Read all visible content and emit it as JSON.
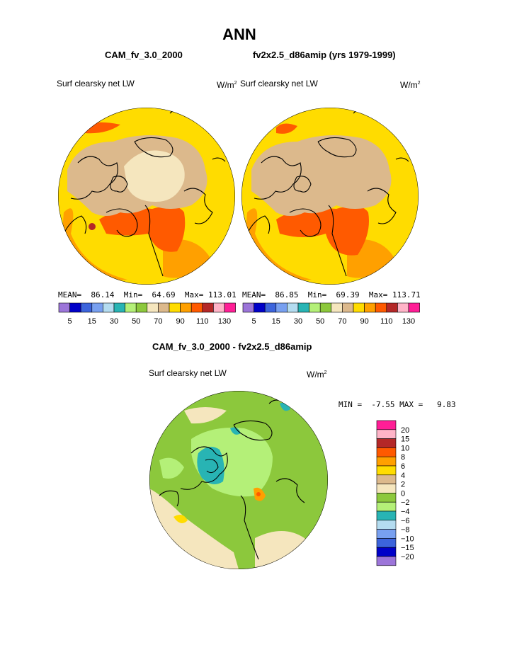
{
  "figure_title": "ANN",
  "chart_data": [
    {
      "type": "heatmap",
      "projection": "polar stereographic (north pole)",
      "case_title": "CAM_fv_3.0_2000",
      "variable_label": "Surf clearsky net LW",
      "units": "W/m",
      "units_exp": "2",
      "stats": {
        "mean_label": "MEAN=",
        "mean": "86.14",
        "min_label": "Min=",
        "min": "64.69",
        "max_label": "Max=",
        "max": "113.01"
      },
      "colorbar": {
        "levels": [
          "5",
          "15",
          "30",
          "50",
          "70",
          "90",
          "110",
          "130"
        ],
        "colors": [
          "#9c75d9",
          "#0000c8",
          "#3c64dc",
          "#78a0f0",
          "#b4dcf0",
          "#28b4b4",
          "#b4f078",
          "#8cc83c",
          "#f5e6be",
          "#dcb98c",
          "#ffdc00",
          "#ffa000",
          "#ff5a00",
          "#b42828",
          "#ffb4c8",
          "#ff1e96"
        ]
      },
      "regions_legend": {
        "arctic_center": "#f5e6be",
        "high_latitude_land": "#dcb98c",
        "mid_latitudes": "#ffdc00",
        "warm_bands": "#ffa000",
        "north_atlantic": "#ff5a00"
      }
    },
    {
      "type": "heatmap",
      "projection": "polar stereographic (north pole)",
      "case_title": "fv2x2.5_d86amip (yrs 1979-1999)",
      "variable_label": "Surf clearsky net LW",
      "units": "W/m",
      "units_exp": "2",
      "stats": {
        "mean_label": "MEAN=",
        "mean": "86.85",
        "min_label": "Min=",
        "min": "69.39",
        "max_label": "Max=",
        "max": "113.71"
      },
      "colorbar": {
        "levels": [
          "5",
          "15",
          "30",
          "50",
          "70",
          "90",
          "110",
          "130"
        ],
        "colors": [
          "#9c75d9",
          "#0000c8",
          "#3c64dc",
          "#78a0f0",
          "#b4dcf0",
          "#28b4b4",
          "#b4f078",
          "#8cc83c",
          "#f5e6be",
          "#dcb98c",
          "#ffdc00",
          "#ffa000",
          "#ff5a00",
          "#b42828",
          "#ffb4c8",
          "#ff1e96"
        ]
      }
    },
    {
      "type": "heatmap",
      "projection": "polar stereographic (north pole)",
      "case_title": "CAM_fv_3.0_2000 - fv2x2.5_d86amip",
      "variable_label": "Surf clearsky net LW",
      "units": "W/m",
      "units_exp": "2",
      "stats": {
        "min_label": "MIN =",
        "min": "-7.55",
        "max_label": "MAX =",
        "max": "9.83"
      },
      "colorbar": {
        "levels": [
          "20",
          "15",
          "10",
          "8",
          "6",
          "4",
          "2",
          "0",
          "−2",
          "−4",
          "−6",
          "−8",
          "−10",
          "−15",
          "−20"
        ],
        "colors": [
          "#ff1e96",
          "#ffb4c8",
          "#b42828",
          "#ff5a00",
          "#ffa000",
          "#ffdc00",
          "#dcb98c",
          "#f5e6be",
          "#8cc83c",
          "#b4f078",
          "#28b4b4",
          "#b4dcf0",
          "#78a0f0",
          "#3c64dc",
          "#0000c8",
          "#9c75d9"
        ]
      }
    }
  ]
}
